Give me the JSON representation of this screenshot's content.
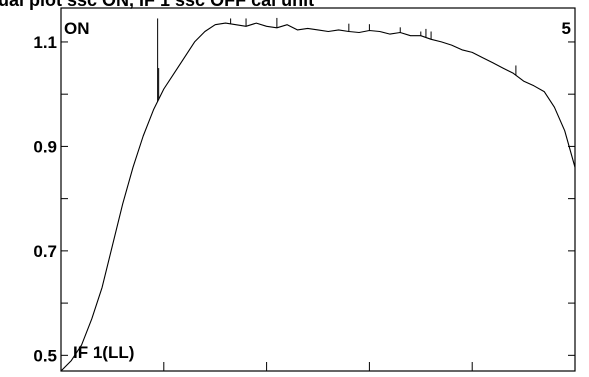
{
  "header": {
    "cut_title": "ual plot ssc ON, IF 1 ssc OFF cal unit"
  },
  "labels": {
    "top_left": "ON",
    "top_right": "5",
    "bottom_left": "IF 1(LL)"
  },
  "chart_data": {
    "type": "line",
    "title": "",
    "xlabel": "",
    "ylabel": "",
    "y_tick_labels": [
      "1.1",
      "0.9",
      "0.7",
      "0.5"
    ],
    "y_ticks": [
      1.1,
      1.0,
      0.9,
      0.8,
      0.7,
      0.6,
      0.5
    ],
    "ylim": [
      0.47,
      1.165
    ],
    "xlim": [
      0,
      1
    ],
    "x_ticks": [
      0.2,
      0.4,
      0.6,
      0.8,
      1.0
    ],
    "grid": false,
    "line_color": "#000000",
    "series": [
      {
        "x": [
          0.0,
          0.02,
          0.04,
          0.06,
          0.08,
          0.1,
          0.12,
          0.14,
          0.16,
          0.18,
          0.2,
          0.22,
          0.24,
          0.26,
          0.28,
          0.3,
          0.32,
          0.34,
          0.36,
          0.38,
          0.4,
          0.42,
          0.44,
          0.46,
          0.48,
          0.5,
          0.52,
          0.54,
          0.56,
          0.58,
          0.6,
          0.62,
          0.64,
          0.66,
          0.68,
          0.7,
          0.72,
          0.74,
          0.76,
          0.78,
          0.8,
          0.82,
          0.84,
          0.86,
          0.88,
          0.9,
          0.92,
          0.94,
          0.96,
          0.98,
          1.0
        ],
        "values": [
          0.47,
          0.49,
          0.52,
          0.57,
          0.63,
          0.71,
          0.79,
          0.86,
          0.92,
          0.97,
          1.01,
          1.04,
          1.07,
          1.1,
          1.12,
          1.133,
          1.136,
          1.133,
          1.13,
          1.136,
          1.13,
          1.127,
          1.133,
          1.123,
          1.126,
          1.123,
          1.12,
          1.123,
          1.12,
          1.118,
          1.122,
          1.12,
          1.115,
          1.118,
          1.112,
          1.112,
          1.105,
          1.1,
          1.094,
          1.085,
          1.08,
          1.07,
          1.06,
          1.05,
          1.04,
          1.025,
          1.016,
          1.005,
          0.975,
          0.93,
          0.86
        ]
      }
    ],
    "spikes": [
      {
        "x": 0.188,
        "value": 1.145
      },
      {
        "x": 0.19,
        "value": 1.05
      },
      {
        "x": 0.33,
        "value": 1.145
      },
      {
        "x": 0.36,
        "value": 1.145
      },
      {
        "x": 0.42,
        "value": 1.146
      },
      {
        "x": 0.56,
        "value": 1.135
      },
      {
        "x": 0.6,
        "value": 1.134
      },
      {
        "x": 0.66,
        "value": 1.128
      },
      {
        "x": 0.7,
        "value": 1.12
      },
      {
        "x": 0.71,
        "value": 1.125
      },
      {
        "x": 0.72,
        "value": 1.12
      },
      {
        "x": 0.885,
        "value": 1.055
      }
    ]
  }
}
